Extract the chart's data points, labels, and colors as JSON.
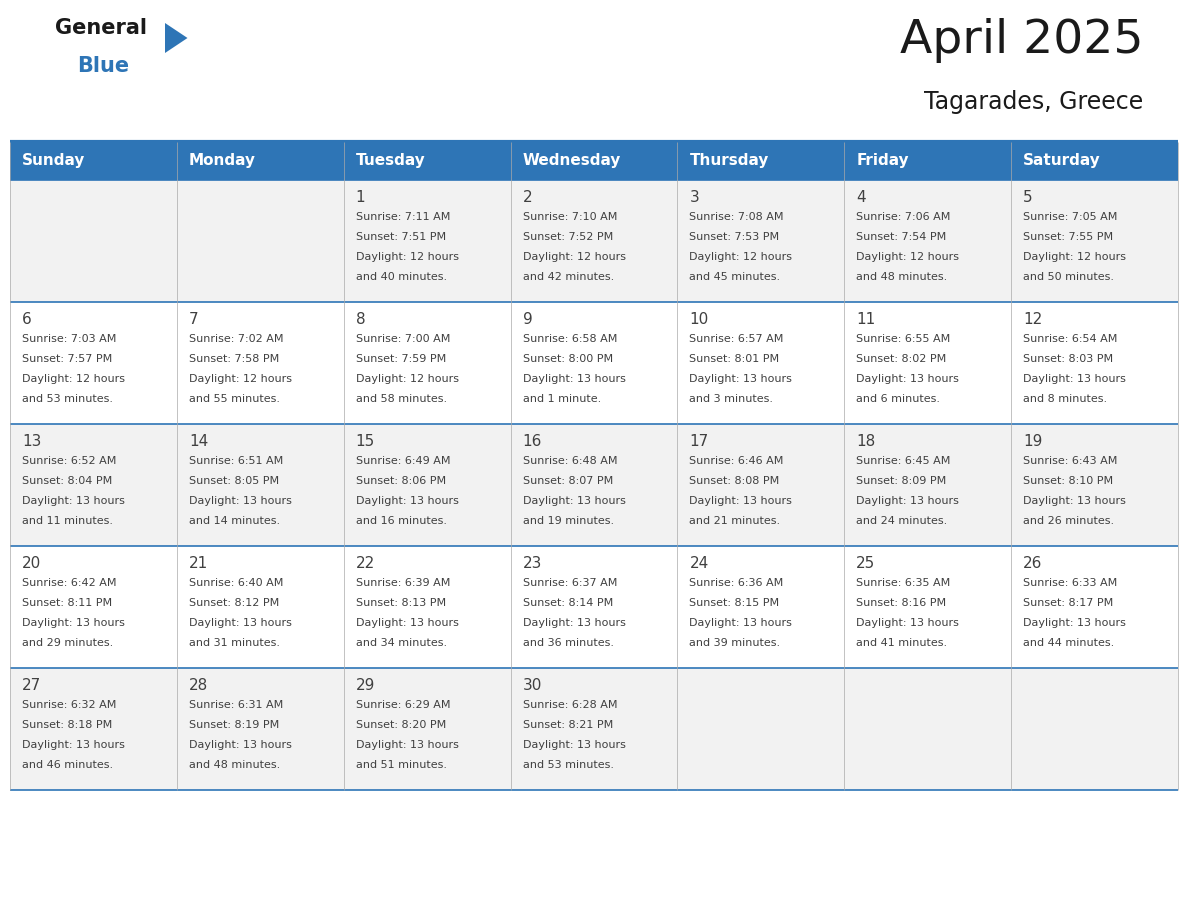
{
  "title": "April 2025",
  "subtitle": "Tagarades, Greece",
  "header_bg": "#2E75B6",
  "header_text_color": "#FFFFFF",
  "cell_bg_odd": "#F2F2F2",
  "cell_bg_even": "#FFFFFF",
  "border_color": "#2E75B6",
  "text_color": "#404040",
  "days_of_week": [
    "Sunday",
    "Monday",
    "Tuesday",
    "Wednesday",
    "Thursday",
    "Friday",
    "Saturday"
  ],
  "weeks": [
    [
      {
        "day": "",
        "sunrise": "",
        "sunset": "",
        "daylight": ""
      },
      {
        "day": "",
        "sunrise": "",
        "sunset": "",
        "daylight": ""
      },
      {
        "day": "1",
        "sunrise": "Sunrise: 7:11 AM",
        "sunset": "Sunset: 7:51 PM",
        "daylight": "Daylight: 12 hours\nand 40 minutes."
      },
      {
        "day": "2",
        "sunrise": "Sunrise: 7:10 AM",
        "sunset": "Sunset: 7:52 PM",
        "daylight": "Daylight: 12 hours\nand 42 minutes."
      },
      {
        "day": "3",
        "sunrise": "Sunrise: 7:08 AM",
        "sunset": "Sunset: 7:53 PM",
        "daylight": "Daylight: 12 hours\nand 45 minutes."
      },
      {
        "day": "4",
        "sunrise": "Sunrise: 7:06 AM",
        "sunset": "Sunset: 7:54 PM",
        "daylight": "Daylight: 12 hours\nand 48 minutes."
      },
      {
        "day": "5",
        "sunrise": "Sunrise: 7:05 AM",
        "sunset": "Sunset: 7:55 PM",
        "daylight": "Daylight: 12 hours\nand 50 minutes."
      }
    ],
    [
      {
        "day": "6",
        "sunrise": "Sunrise: 7:03 AM",
        "sunset": "Sunset: 7:57 PM",
        "daylight": "Daylight: 12 hours\nand 53 minutes."
      },
      {
        "day": "7",
        "sunrise": "Sunrise: 7:02 AM",
        "sunset": "Sunset: 7:58 PM",
        "daylight": "Daylight: 12 hours\nand 55 minutes."
      },
      {
        "day": "8",
        "sunrise": "Sunrise: 7:00 AM",
        "sunset": "Sunset: 7:59 PM",
        "daylight": "Daylight: 12 hours\nand 58 minutes."
      },
      {
        "day": "9",
        "sunrise": "Sunrise: 6:58 AM",
        "sunset": "Sunset: 8:00 PM",
        "daylight": "Daylight: 13 hours\nand 1 minute."
      },
      {
        "day": "10",
        "sunrise": "Sunrise: 6:57 AM",
        "sunset": "Sunset: 8:01 PM",
        "daylight": "Daylight: 13 hours\nand 3 minutes."
      },
      {
        "day": "11",
        "sunrise": "Sunrise: 6:55 AM",
        "sunset": "Sunset: 8:02 PM",
        "daylight": "Daylight: 13 hours\nand 6 minutes."
      },
      {
        "day": "12",
        "sunrise": "Sunrise: 6:54 AM",
        "sunset": "Sunset: 8:03 PM",
        "daylight": "Daylight: 13 hours\nand 8 minutes."
      }
    ],
    [
      {
        "day": "13",
        "sunrise": "Sunrise: 6:52 AM",
        "sunset": "Sunset: 8:04 PM",
        "daylight": "Daylight: 13 hours\nand 11 minutes."
      },
      {
        "day": "14",
        "sunrise": "Sunrise: 6:51 AM",
        "sunset": "Sunset: 8:05 PM",
        "daylight": "Daylight: 13 hours\nand 14 minutes."
      },
      {
        "day": "15",
        "sunrise": "Sunrise: 6:49 AM",
        "sunset": "Sunset: 8:06 PM",
        "daylight": "Daylight: 13 hours\nand 16 minutes."
      },
      {
        "day": "16",
        "sunrise": "Sunrise: 6:48 AM",
        "sunset": "Sunset: 8:07 PM",
        "daylight": "Daylight: 13 hours\nand 19 minutes."
      },
      {
        "day": "17",
        "sunrise": "Sunrise: 6:46 AM",
        "sunset": "Sunset: 8:08 PM",
        "daylight": "Daylight: 13 hours\nand 21 minutes."
      },
      {
        "day": "18",
        "sunrise": "Sunrise: 6:45 AM",
        "sunset": "Sunset: 8:09 PM",
        "daylight": "Daylight: 13 hours\nand 24 minutes."
      },
      {
        "day": "19",
        "sunrise": "Sunrise: 6:43 AM",
        "sunset": "Sunset: 8:10 PM",
        "daylight": "Daylight: 13 hours\nand 26 minutes."
      }
    ],
    [
      {
        "day": "20",
        "sunrise": "Sunrise: 6:42 AM",
        "sunset": "Sunset: 8:11 PM",
        "daylight": "Daylight: 13 hours\nand 29 minutes."
      },
      {
        "day": "21",
        "sunrise": "Sunrise: 6:40 AM",
        "sunset": "Sunset: 8:12 PM",
        "daylight": "Daylight: 13 hours\nand 31 minutes."
      },
      {
        "day": "22",
        "sunrise": "Sunrise: 6:39 AM",
        "sunset": "Sunset: 8:13 PM",
        "daylight": "Daylight: 13 hours\nand 34 minutes."
      },
      {
        "day": "23",
        "sunrise": "Sunrise: 6:37 AM",
        "sunset": "Sunset: 8:14 PM",
        "daylight": "Daylight: 13 hours\nand 36 minutes."
      },
      {
        "day": "24",
        "sunrise": "Sunrise: 6:36 AM",
        "sunset": "Sunset: 8:15 PM",
        "daylight": "Daylight: 13 hours\nand 39 minutes."
      },
      {
        "day": "25",
        "sunrise": "Sunrise: 6:35 AM",
        "sunset": "Sunset: 8:16 PM",
        "daylight": "Daylight: 13 hours\nand 41 minutes."
      },
      {
        "day": "26",
        "sunrise": "Sunrise: 6:33 AM",
        "sunset": "Sunset: 8:17 PM",
        "daylight": "Daylight: 13 hours\nand 44 minutes."
      }
    ],
    [
      {
        "day": "27",
        "sunrise": "Sunrise: 6:32 AM",
        "sunset": "Sunset: 8:18 PM",
        "daylight": "Daylight: 13 hours\nand 46 minutes."
      },
      {
        "day": "28",
        "sunrise": "Sunrise: 6:31 AM",
        "sunset": "Sunset: 8:19 PM",
        "daylight": "Daylight: 13 hours\nand 48 minutes."
      },
      {
        "day": "29",
        "sunrise": "Sunrise: 6:29 AM",
        "sunset": "Sunset: 8:20 PM",
        "daylight": "Daylight: 13 hours\nand 51 minutes."
      },
      {
        "day": "30",
        "sunrise": "Sunrise: 6:28 AM",
        "sunset": "Sunset: 8:21 PM",
        "daylight": "Daylight: 13 hours\nand 53 minutes."
      },
      {
        "day": "",
        "sunrise": "",
        "sunset": "",
        "daylight": ""
      },
      {
        "day": "",
        "sunrise": "",
        "sunset": "",
        "daylight": ""
      },
      {
        "day": "",
        "sunrise": "",
        "sunset": "",
        "daylight": ""
      }
    ]
  ]
}
